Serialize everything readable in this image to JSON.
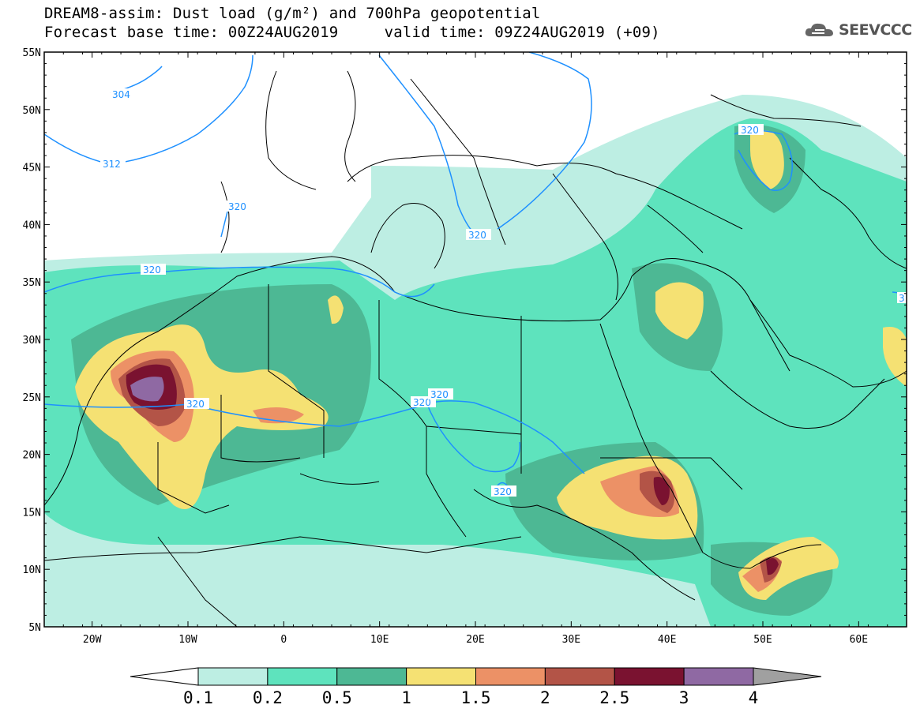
{
  "header": {
    "title_line1": "DREAM8-assim: Dust load (g/m²) and 700hPa geopotential",
    "title_line2": "Forecast base time: 00Z24AUG2019     valid time: 09Z24AUG2019 (+09)"
  },
  "logo": {
    "text": "SEEVCCC",
    "icon": "cloud-icon"
  },
  "map": {
    "lon_range": [
      -25,
      65
    ],
    "lat_range": [
      5,
      55
    ],
    "lat_labels": [
      "55N",
      "50N",
      "45N",
      "40N",
      "35N",
      "30N",
      "25N",
      "20N",
      "15N",
      "10N",
      "5N"
    ],
    "lon_labels": [
      "20W",
      "10W",
      "0",
      "10E",
      "20E",
      "30E",
      "40E",
      "50E",
      "60E"
    ]
  },
  "contour_labels": [
    "304",
    "312",
    "320",
    "320",
    "320",
    "320",
    "320",
    "320",
    "320",
    "320",
    "3"
  ],
  "colorbar": {
    "labels": [
      "0.1",
      "0.2",
      "0.5",
      "1",
      "1.5",
      "2",
      "2.5",
      "3",
      "4"
    ],
    "colors": [
      "#ffffff",
      "#bdeee3",
      "#5ee3bd",
      "#4db894",
      "#f5e173",
      "#ec9166",
      "#b35447",
      "#7a1230",
      "#8f69a3",
      "#a0a0a0"
    ]
  },
  "colors": {
    "contour": "#1e90ff",
    "land_border": "#000000",
    "level1": "#bdeee3",
    "level2": "#5ee3bd",
    "level3": "#4db894",
    "level4": "#f5e173",
    "level5": "#ec9166",
    "level6": "#b35447",
    "level7": "#7a1230",
    "level8": "#8f69a3"
  }
}
